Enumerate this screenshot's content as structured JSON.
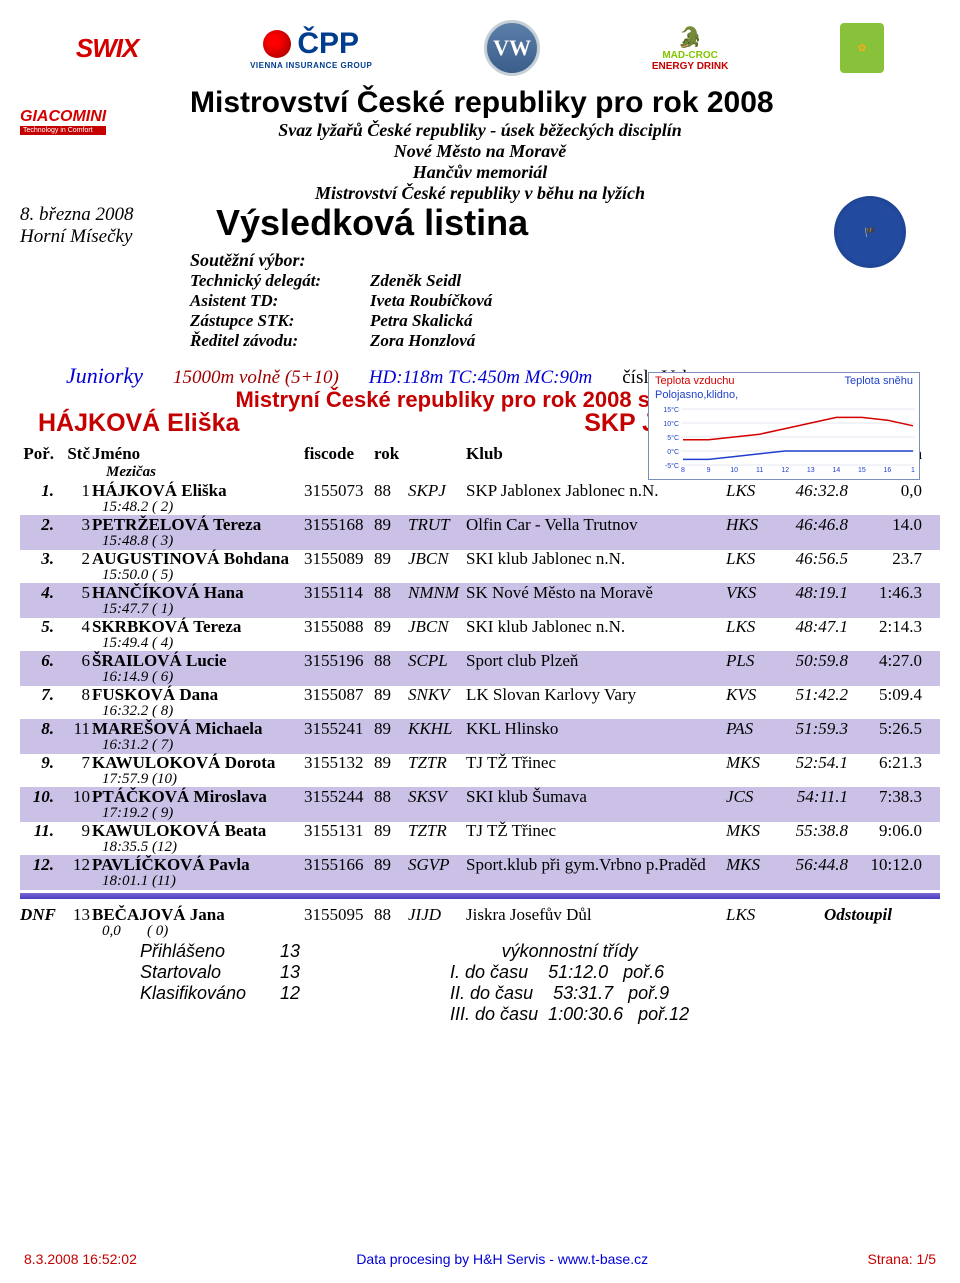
{
  "sponsors": {
    "swix": "SWIX",
    "cpp": "ČPP",
    "cpp_sub": "VIENNA INSURANCE GROUP",
    "vw": "VW",
    "madcroc_top": "MAD-CROC",
    "madcroc_sub": "ENERGY DRINK",
    "giacomini": "GIACOMINI",
    "giacomini_sub": "Technology in Comfort"
  },
  "header": {
    "date": "8. března 2008",
    "location": "Horní Mísečky",
    "main_title": "Mistrovství České republiky pro rok 2008",
    "sub1": "Svaz lyžařů České republiky - úsek běžeckých disciplín",
    "sub2": "Nové Město na Moravě",
    "sub3": "Hančův memoriál",
    "sub4": "Mistrovství České republiky v běhu na lyžích",
    "result_title": "Výsledková listina"
  },
  "committee": {
    "header": "Soutěžní výbor:",
    "rows": [
      {
        "role": "Technický delegát:",
        "name": "Zdeněk Seidl"
      },
      {
        "role": "Asistent TD:",
        "name": "Iveta Roubíčková"
      },
      {
        "role": "Zástupce STK:",
        "name": "Petra Skalická"
      },
      {
        "role": "Ředitel závodu:",
        "name": "Zora Honzlová"
      }
    ]
  },
  "weather": {
    "air": "Teplota vzduchu",
    "snow": "Teplota sněhu",
    "cond": "Polojasno,klidno,",
    "yticks": [
      "15°C",
      "10°C",
      "5°C",
      "0°C",
      "-5°C"
    ],
    "xticks": [
      "8",
      "9",
      "10",
      "11",
      "12",
      "13",
      "14",
      "15",
      "16",
      "1"
    ],
    "air_color": "#d40000",
    "snow_color": "#1f3fcc",
    "air_series": [
      4,
      4,
      5,
      6,
      8,
      10,
      12,
      12,
      11,
      9
    ],
    "snow_series": [
      -3,
      -3,
      -2,
      -1,
      0,
      0,
      0,
      0,
      0,
      0
    ],
    "ylim": [
      -5,
      15
    ]
  },
  "category": {
    "name": "Juniorky",
    "dist": "15000m volně (5+10)",
    "dims": "HD:118m TC:450m MC:90m",
    "num": "čísla Vokswagen"
  },
  "champion": {
    "line": "Mistryní České republiky pro rok 2008 se stává",
    "name": "HÁJKOVÁ Eliška",
    "club": "SKP Jablonex Jablonec n.N."
  },
  "table": {
    "hdr": {
      "por": "Poř.",
      "stc": "Stč",
      "jmeno": "Jméno",
      "fis": "fiscode",
      "rok": "rok",
      "klub": "Klub",
      "cas": "Čas",
      "ztrata": "Ztráta",
      "mezicas": "Mezičas"
    },
    "rows": [
      {
        "por": "1.",
        "stc": "1",
        "name": "HÁJKOVÁ Eliška",
        "fis": "3155073",
        "rok": "88",
        "code": "SKPJ",
        "klub": "SKP Jablonex Jablonec n.N.",
        "reg": "LKS",
        "cas": "46:32.8",
        "loss": "0,0",
        "split": "15:48.2 ( 2)"
      },
      {
        "por": "2.",
        "stc": "3",
        "name": "PETRŽELOVÁ Tereza",
        "fis": "3155168",
        "rok": "89",
        "code": "TRUT",
        "klub": "Olfin Car - Vella Trutnov",
        "reg": "HKS",
        "cas": "46:46.8",
        "loss": "14.0",
        "split": "15:48.8 ( 3)"
      },
      {
        "por": "3.",
        "stc": "2",
        "name": "AUGUSTINOVÁ Bohdana",
        "fis": "3155089",
        "rok": "89",
        "code": "JBCN",
        "klub": "SKI klub Jablonec n.N.",
        "reg": "LKS",
        "cas": "46:56.5",
        "loss": "23.7",
        "split": "15:50.0 ( 5)"
      },
      {
        "por": "4.",
        "stc": "5",
        "name": "HANČÍKOVÁ Hana",
        "fis": "3155114",
        "rok": "88",
        "code": "NMNM",
        "klub": "SK Nové Město na Moravě",
        "reg": "VKS",
        "cas": "48:19.1",
        "loss": "1:46.3",
        "split": "15:47.7 ( 1)"
      },
      {
        "por": "5.",
        "stc": "4",
        "name": "SKRBKOVÁ Tereza",
        "fis": "3155088",
        "rok": "89",
        "code": "JBCN",
        "klub": "SKI klub Jablonec n.N.",
        "reg": "LKS",
        "cas": "48:47.1",
        "loss": "2:14.3",
        "split": "15:49.4 ( 4)"
      },
      {
        "por": "6.",
        "stc": "6",
        "name": "ŠRAILOVÁ Lucie",
        "fis": "3155196",
        "rok": "88",
        "code": "SCPL",
        "klub": "Sport club Plzeň",
        "reg": "PLS",
        "cas": "50:59.8",
        "loss": "4:27.0",
        "split": "16:14.9 ( 6)"
      },
      {
        "por": "7.",
        "stc": "8",
        "name": "FUSKOVÁ Dana",
        "fis": "3155087",
        "rok": "89",
        "code": "SNKV",
        "klub": "LK Slovan Karlovy Vary",
        "reg": "KVS",
        "cas": "51:42.2",
        "loss": "5:09.4",
        "split": "16:32.2 ( 8)"
      },
      {
        "por": "8.",
        "stc": "11",
        "name": "MAREŠOVÁ Michaela",
        "fis": "3155241",
        "rok": "89",
        "code": "KKHL",
        "klub": "KKL Hlinsko",
        "reg": "PAS",
        "cas": "51:59.3",
        "loss": "5:26.5",
        "split": "16:31.2 ( 7)"
      },
      {
        "por": "9.",
        "stc": "7",
        "name": "KAWULOKOVÁ Dorota",
        "fis": "3155132",
        "rok": "89",
        "code": "TZTR",
        "klub": "TJ TŽ Třinec",
        "reg": "MKS",
        "cas": "52:54.1",
        "loss": "6:21.3",
        "split": "17:57.9 (10)"
      },
      {
        "por": "10.",
        "stc": "10",
        "name": "PTÁČKOVÁ Miroslava",
        "fis": "3155244",
        "rok": "88",
        "code": "SKSV",
        "klub": "SKI klub Šumava",
        "reg": "JCS",
        "cas": "54:11.1",
        "loss": "7:38.3",
        "split": "17:19.2 ( 9)"
      },
      {
        "por": "11.",
        "stc": "9",
        "name": "KAWULOKOVÁ Beata",
        "fis": "3155131",
        "rok": "89",
        "code": "TZTR",
        "klub": "TJ TŽ Třinec",
        "reg": "MKS",
        "cas": "55:38.8",
        "loss": "9:06.0",
        "split": "18:35.5 (12)"
      },
      {
        "por": "12.",
        "stc": "12",
        "name": "PAVLÍČKOVÁ Pavla",
        "fis": "3155166",
        "rok": "89",
        "code": "SGVP",
        "klub": "Sport.klub při gym.Vrbno p.Praděd",
        "reg": "MKS",
        "cas": "56:44.8",
        "loss": "10:12.0",
        "split": "18:01.1 (11)"
      }
    ],
    "dnf": {
      "por": "DNF",
      "stc": "13",
      "name": "BEČAJOVÁ Jana",
      "fis": "3155095",
      "rok": "88",
      "code": "JIJD",
      "klub": "Jiskra Josefův Důl",
      "reg": "LKS",
      "status": "Odstoupil",
      "split": "0,0       ( 0)"
    }
  },
  "summary": {
    "left": [
      {
        "lbl": "Přihlášeno",
        "val": "13"
      },
      {
        "lbl": "Startovalo",
        "val": "13"
      },
      {
        "lbl": "Klasifikováno",
        "val": "12"
      }
    ],
    "right_hdr": "výkonnostní třídy",
    "right": [
      "I. do času    51:12.0   poř.6",
      "II. do času    53:31.7   poř.9",
      "III. do času  1:00:30.6   poř.12"
    ]
  },
  "footer": {
    "left": "8.3.2008 16:52:02",
    "center": "Data procesing by H&H Servis - www.t-base.cz",
    "right": "Strana: 1/5"
  },
  "colors": {
    "alt_row": "#cbc1e7",
    "red": "#c40000",
    "blue": "#0000d4"
  }
}
